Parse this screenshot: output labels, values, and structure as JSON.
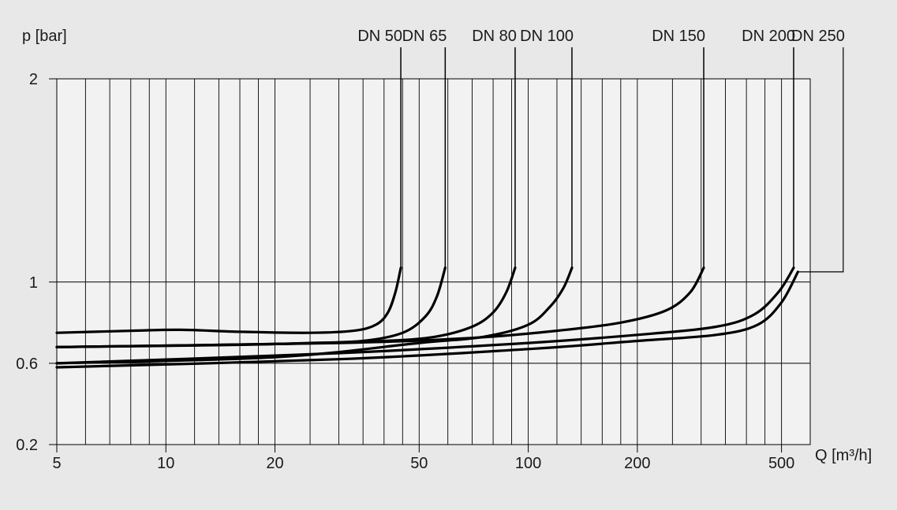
{
  "colors": {
    "background": "#e8e8e8",
    "plot_background": "#f2f2f2",
    "grid": "#000000",
    "curve": "#000000",
    "text": "#1a1a1a"
  },
  "chart_data": {
    "type": "line",
    "title": "",
    "xlabel": "Q [m³/h]",
    "ylabel": "p [bar]",
    "x_scale": "log",
    "x_range": [
      5,
      600
    ],
    "y_range": [
      0.2,
      2
    ],
    "x_ticks": [
      {
        "value": 5,
        "label": "5"
      },
      {
        "value": 10,
        "label": "10"
      },
      {
        "value": 20,
        "label": "20"
      },
      {
        "value": 50,
        "label": "50"
      },
      {
        "value": 100,
        "label": "100"
      },
      {
        "value": 200,
        "label": "200"
      },
      {
        "value": 500,
        "label": "500"
      }
    ],
    "x_minor_grid": [
      6,
      7,
      8,
      9,
      10,
      12,
      14,
      16,
      18,
      20,
      25,
      30,
      35,
      40,
      45,
      50,
      60,
      70,
      80,
      90,
      100,
      120,
      140,
      160,
      180,
      200,
      250,
      300,
      350,
      400,
      450,
      500
    ],
    "y_ticks": [
      {
        "value": 0.2,
        "label": "0.2"
      },
      {
        "value": 0.6,
        "label": "0.6"
      },
      {
        "value": 1,
        "label": "1"
      },
      {
        "value": 2,
        "label": "2"
      }
    ],
    "grid": true,
    "series": [
      {
        "name": "DN 50",
        "points": [
          [
            5,
            0.75
          ],
          [
            8,
            0.76
          ],
          [
            11,
            0.765
          ],
          [
            16,
            0.755
          ],
          [
            25,
            0.75
          ],
          [
            33,
            0.76
          ],
          [
            38,
            0.79
          ],
          [
            41,
            0.85
          ],
          [
            43,
            0.95
          ],
          [
            44.5,
            1.07
          ]
        ]
      },
      {
        "name": "DN 65",
        "points": [
          [
            5,
            0.68
          ],
          [
            15,
            0.69
          ],
          [
            25,
            0.7
          ],
          [
            35,
            0.71
          ],
          [
            45,
            0.75
          ],
          [
            52,
            0.83
          ],
          [
            56,
            0.93
          ],
          [
            59,
            1.07
          ]
        ]
      },
      {
        "name": "DN 80",
        "points": [
          [
            5,
            0.68
          ],
          [
            20,
            0.695
          ],
          [
            40,
            0.71
          ],
          [
            55,
            0.73
          ],
          [
            70,
            0.78
          ],
          [
            80,
            0.85
          ],
          [
            87,
            0.95
          ],
          [
            92,
            1.07
          ]
        ]
      },
      {
        "name": "DN 100",
        "points": [
          [
            5,
            0.6
          ],
          [
            20,
            0.63
          ],
          [
            50,
            0.7
          ],
          [
            75,
            0.73
          ],
          [
            100,
            0.79
          ],
          [
            115,
            0.88
          ],
          [
            125,
            0.97
          ],
          [
            132,
            1.07
          ]
        ]
      },
      {
        "name": "DN 150",
        "points": [
          [
            5,
            0.68
          ],
          [
            30,
            0.7
          ],
          [
            70,
            0.725
          ],
          [
            120,
            0.76
          ],
          [
            180,
            0.8
          ],
          [
            240,
            0.86
          ],
          [
            280,
            0.95
          ],
          [
            305,
            1.07
          ]
        ]
      },
      {
        "name": "DN 200",
        "points": [
          [
            5,
            0.6
          ],
          [
            30,
            0.65
          ],
          [
            100,
            0.7
          ],
          [
            200,
            0.74
          ],
          [
            330,
            0.78
          ],
          [
            420,
            0.84
          ],
          [
            490,
            0.95
          ],
          [
            540,
            1.07
          ]
        ]
      },
      {
        "name": "DN 250",
        "points": [
          [
            5,
            0.58
          ],
          [
            30,
            0.62
          ],
          [
            100,
            0.67
          ],
          [
            200,
            0.71
          ],
          [
            330,
            0.74
          ],
          [
            430,
            0.79
          ],
          [
            500,
            0.9
          ],
          [
            555,
            1.05
          ]
        ]
      }
    ],
    "curve_labels": [
      {
        "series": "DN 50",
        "label": "DN 50",
        "label_x": 44.5
      },
      {
        "series": "DN 65",
        "label": "DN 65",
        "label_x": 59
      },
      {
        "series": "DN 80",
        "label": "DN 80",
        "label_x": 92
      },
      {
        "series": "DN 100",
        "label": "DN 100",
        "label_x": 132
      },
      {
        "series": "DN 150",
        "label": "DN 150",
        "label_x": 305
      },
      {
        "series": "DN 200",
        "label": "DN 200",
        "label_x": 540
      },
      {
        "series": "DN 250",
        "label": "DN 250",
        "label_x": 740
      }
    ]
  }
}
